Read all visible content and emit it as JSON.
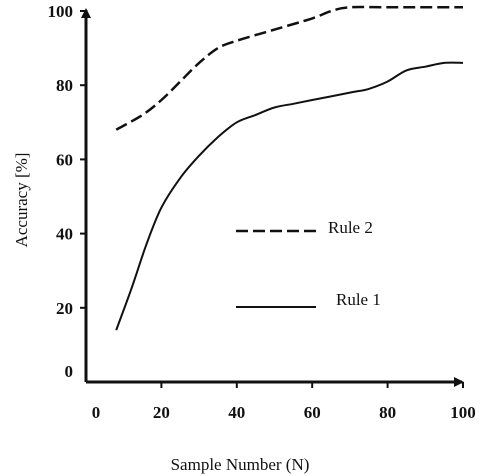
{
  "chart_data": {
    "type": "line",
    "title": "",
    "xlabel": "Sample Number (N)",
    "ylabel": "Accuracy [%]",
    "xlim": [
      0,
      100
    ],
    "ylim": [
      0,
      100
    ],
    "xticks": [
      "0",
      "20",
      "40",
      "60",
      "80",
      "100"
    ],
    "yticks": [
      "0",
      "20",
      "40",
      "60",
      "80",
      "100"
    ],
    "grid": false,
    "legend_position": "center-right",
    "series": [
      {
        "name": "Rule 2",
        "style": "dashed",
        "color": "#111111",
        "x": [
          8,
          15,
          20,
          25,
          30,
          35,
          40,
          50,
          60,
          65,
          70,
          80,
          90,
          100
        ],
        "y": [
          68,
          72,
          76,
          81,
          86,
          90,
          92,
          95,
          98,
          100,
          101,
          101,
          101,
          101
        ]
      },
      {
        "name": "Rule 1",
        "style": "solid",
        "color": "#111111",
        "x": [
          8,
          12,
          16,
          20,
          25,
          30,
          35,
          40,
          45,
          50,
          55,
          60,
          70,
          75,
          80,
          85,
          90,
          95,
          100
        ],
        "y": [
          14,
          25,
          37,
          47,
          55,
          61,
          66,
          70,
          72,
          74,
          75,
          76,
          78,
          79,
          81,
          84,
          85,
          86,
          86
        ]
      }
    ]
  }
}
